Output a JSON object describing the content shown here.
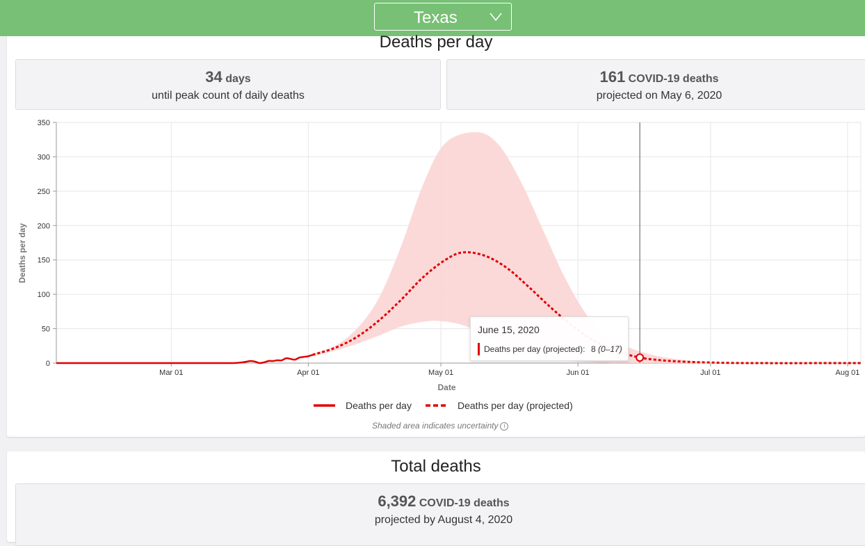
{
  "header": {
    "state_select": {
      "value": "Texas"
    }
  },
  "deaths_per_day": {
    "title": "Deaths per day",
    "stat_peak": {
      "number": "34",
      "unit": "days",
      "caption": "until peak count of daily deaths"
    },
    "stat_peak_deaths": {
      "number": "161",
      "unit": "COVID-19 deaths",
      "caption": "projected on May 6, 2020"
    },
    "tooltip": {
      "date": "June 15, 2020",
      "label": "Deaths per day (projected):",
      "value": "8",
      "range": "(0–17)"
    },
    "legend": {
      "actual": "Deaths per day",
      "projected": "Deaths per day (projected)"
    },
    "note": "Shaded area indicates uncertainty",
    "info_icon_glyph": "i"
  },
  "total_deaths": {
    "title": "Total deaths",
    "stat": {
      "number": "6,392",
      "unit": "COVID-19 deaths",
      "caption": "projected by August 4, 2020"
    }
  },
  "colors": {
    "header_green": "#77c075",
    "line_red": "#e00000",
    "band_pink": "#fcd5d5"
  },
  "chart_data": {
    "type": "line",
    "xlabel": "Date",
    "ylabel": "Deaths per day",
    "ylim": [
      0,
      350
    ],
    "yticks": [
      0,
      50,
      100,
      150,
      200,
      250,
      300,
      350
    ],
    "xlim": [
      "2020-02-04",
      "2020-08-04"
    ],
    "xticks": [
      {
        "date": "2020-03-01",
        "label": "Mar 01"
      },
      {
        "date": "2020-04-01",
        "label": "Apr 01"
      },
      {
        "date": "2020-05-01",
        "label": "May 01"
      },
      {
        "date": "2020-06-01",
        "label": "Jun 01"
      },
      {
        "date": "2020-07-01",
        "label": "Jul 01"
      },
      {
        "date": "2020-08-01",
        "label": "Aug 01"
      }
    ],
    "grid": true,
    "legend_position": "bottom",
    "series": [
      {
        "name": "Deaths per day",
        "style": "solid",
        "points": [
          [
            "2020-02-04",
            0
          ],
          [
            "2020-03-10",
            0
          ],
          [
            "2020-03-15",
            0
          ],
          [
            "2020-03-17",
            1
          ],
          [
            "2020-03-18",
            2
          ],
          [
            "2020-03-19",
            3
          ],
          [
            "2020-03-20",
            2
          ],
          [
            "2020-03-21",
            0
          ],
          [
            "2020-03-22",
            1
          ],
          [
            "2020-03-23",
            3
          ],
          [
            "2020-03-24",
            3
          ],
          [
            "2020-03-25",
            4
          ],
          [
            "2020-03-26",
            4
          ],
          [
            "2020-03-27",
            7
          ],
          [
            "2020-03-28",
            6
          ],
          [
            "2020-03-29",
            5
          ],
          [
            "2020-03-30",
            8
          ],
          [
            "2020-03-31",
            9
          ],
          [
            "2020-04-01",
            10
          ],
          [
            "2020-04-02",
            12
          ]
        ]
      },
      {
        "name": "Deaths per day (projected)",
        "style": "dashed",
        "points": [
          [
            "2020-04-02",
            12
          ],
          [
            "2020-04-07",
            22
          ],
          [
            "2020-04-12",
            38
          ],
          [
            "2020-04-17",
            62
          ],
          [
            "2020-04-22",
            92
          ],
          [
            "2020-04-27",
            125
          ],
          [
            "2020-05-02",
            150
          ],
          [
            "2020-05-06",
            161
          ],
          [
            "2020-05-11",
            156
          ],
          [
            "2020-05-16",
            138
          ],
          [
            "2020-05-21",
            110
          ],
          [
            "2020-05-26",
            80
          ],
          [
            "2020-05-31",
            53
          ],
          [
            "2020-06-05",
            31
          ],
          [
            "2020-06-10",
            17
          ],
          [
            "2020-06-15",
            8
          ],
          [
            "2020-06-20",
            4
          ],
          [
            "2020-06-25",
            2
          ],
          [
            "2020-06-30",
            1
          ],
          [
            "2020-07-10",
            0
          ],
          [
            "2020-08-04",
            0
          ]
        ]
      }
    ],
    "uncertainty": {
      "upper": [
        [
          "2020-04-02",
          14
        ],
        [
          "2020-04-07",
          25
        ],
        [
          "2020-04-12",
          50
        ],
        [
          "2020-04-17",
          95
        ],
        [
          "2020-04-22",
          170
        ],
        [
          "2020-04-27",
          260
        ],
        [
          "2020-05-02",
          320
        ],
        [
          "2020-05-09",
          336
        ],
        [
          "2020-05-14",
          318
        ],
        [
          "2020-05-19",
          265
        ],
        [
          "2020-05-24",
          195
        ],
        [
          "2020-05-29",
          125
        ],
        [
          "2020-06-03",
          70
        ],
        [
          "2020-06-08",
          37
        ],
        [
          "2020-06-15",
          17
        ],
        [
          "2020-06-22",
          7
        ],
        [
          "2020-06-30",
          2
        ],
        [
          "2020-07-10",
          0
        ],
        [
          "2020-08-04",
          0
        ]
      ],
      "lower": [
        [
          "2020-04-02",
          10
        ],
        [
          "2020-04-07",
          18
        ],
        [
          "2020-04-12",
          28
        ],
        [
          "2020-04-17",
          40
        ],
        [
          "2020-04-22",
          53
        ],
        [
          "2020-04-27",
          60
        ],
        [
          "2020-05-01",
          61
        ],
        [
          "2020-05-06",
          55
        ],
        [
          "2020-05-11",
          40
        ],
        [
          "2020-05-16",
          24
        ],
        [
          "2020-05-21",
          12
        ],
        [
          "2020-05-26",
          5
        ],
        [
          "2020-06-05",
          1
        ],
        [
          "2020-06-15",
          0
        ],
        [
          "2020-08-04",
          0
        ]
      ]
    },
    "hover": {
      "date": "2020-06-15",
      "value": 8
    }
  }
}
